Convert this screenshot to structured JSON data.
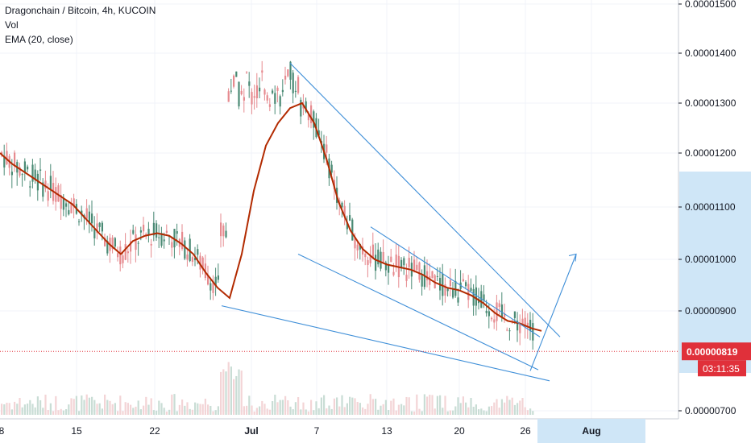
{
  "legend": {
    "title": "Dragonchain / Bitcoin, 4h, KUCOIN",
    "vol": "Vol",
    "ema": "EMA (20, close)"
  },
  "colors": {
    "up": "#e68a8f",
    "down": "#4a8a74",
    "ema": "#b22a00",
    "trendline": "#3f8fd8",
    "price_line": "#e0303a",
    "price_tag": "#e0303a",
    "axis_highlight": "#cfe6f7"
  },
  "chart_data": {
    "type": "candlestick",
    "y_ticks": [
      "0.00001500",
      "0.00001400",
      "0.00001300",
      "0.00001200",
      "0.00001100",
      "0.00001000",
      "0.00000900",
      "0.00000700"
    ],
    "y_tick_values": [
      1500,
      1400,
      1300,
      1200,
      1100,
      1000,
      900,
      700
    ],
    "ylim": [
      700,
      1500
    ],
    "x_ticks": [
      "8",
      "15",
      "22",
      "Jul",
      "7",
      "13",
      "20",
      "26",
      "Aug"
    ],
    "x_bold_ticks": [
      "Jul",
      "Aug"
    ],
    "last_price": "0.00000819",
    "last_price_value": 819,
    "countdown": "03:11:35",
    "ema_path": [
      [
        0,
        1200
      ],
      [
        15,
        1180
      ],
      [
        30,
        1165
      ],
      [
        45,
        1150
      ],
      [
        60,
        1135
      ],
      [
        75,
        1120
      ],
      [
        90,
        1105
      ],
      [
        105,
        1080
      ],
      [
        120,
        1055
      ],
      [
        135,
        1030
      ],
      [
        150,
        1010
      ],
      [
        165,
        1035
      ],
      [
        180,
        1045
      ],
      [
        195,
        1050
      ],
      [
        210,
        1045
      ],
      [
        225,
        1030
      ],
      [
        240,
        1010
      ],
      [
        255,
        975
      ],
      [
        270,
        945
      ],
      [
        285,
        925
      ],
      [
        300,
        1010
      ],
      [
        315,
        1130
      ],
      [
        330,
        1215
      ],
      [
        345,
        1260
      ],
      [
        360,
        1290
      ],
      [
        375,
        1300
      ],
      [
        390,
        1260
      ],
      [
        405,
        1190
      ],
      [
        420,
        1110
      ],
      [
        435,
        1055
      ],
      [
        450,
        1020
      ],
      [
        465,
        1000
      ],
      [
        480,
        990
      ],
      [
        495,
        985
      ],
      [
        510,
        980
      ],
      [
        525,
        970
      ],
      [
        540,
        955
      ],
      [
        555,
        945
      ],
      [
        570,
        940
      ],
      [
        585,
        930
      ],
      [
        600,
        915
      ],
      [
        615,
        895
      ],
      [
        630,
        880
      ],
      [
        645,
        875
      ],
      [
        660,
        865
      ],
      [
        672,
        860
      ]
    ],
    "trendlines": [
      {
        "label": "upper-wedge",
        "from": [
          360,
          1380
        ],
        "to": [
          695,
          848
        ]
      },
      {
        "label": "lower-wedge",
        "from": [
          275,
          910
        ],
        "to": [
          682,
          760
        ]
      },
      {
        "label": "channel-top",
        "from": [
          460,
          1062
        ],
        "to": [
          670,
          848
        ]
      },
      {
        "label": "channel-bottom",
        "from": [
          370,
          1010
        ],
        "to": [
          668,
          782
        ]
      },
      {
        "label": "breakout-arrow",
        "from": [
          658,
          780
        ],
        "to": [
          715,
          1010
        ]
      }
    ]
  }
}
